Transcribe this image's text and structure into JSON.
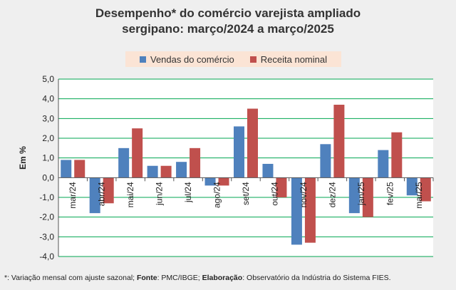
{
  "chart_data": {
    "type": "bar",
    "title_lines": [
      "Desempenho* do comércio varejista ampliado",
      "sergipano: março/2024 a março/2025"
    ],
    "ylabel": "Em %",
    "ylim": [
      -4.0,
      5.0
    ],
    "yticks": [
      5.0,
      4.0,
      3.0,
      2.0,
      1.0,
      0.0,
      -1.0,
      -2.0,
      -3.0,
      -4.0
    ],
    "ytick_labels": [
      "5,0",
      "4,0",
      "3,0",
      "2,0",
      "1,0",
      "0,0",
      "-1,0",
      "-2,0",
      "-3,0",
      "-4,0"
    ],
    "grid": true,
    "legend_position": "top-center",
    "categories": [
      "mar/24",
      "abr/24",
      "mai/24",
      "jun/24",
      "jul/24",
      "ago/24",
      "set/24",
      "out/24",
      "nov/24",
      "dez/24",
      "jan/25",
      "fev/25",
      "mar/25"
    ],
    "series": [
      {
        "name": "Vendas do comércio",
        "color": "#4f81bd",
        "values": [
          0.9,
          -1.8,
          1.5,
          0.6,
          0.8,
          -0.4,
          2.6,
          0.7,
          -3.4,
          1.7,
          -1.8,
          1.4,
          -0.9
        ]
      },
      {
        "name": "Receita nominal",
        "color": "#c0504d",
        "values": [
          0.9,
          -1.3,
          2.5,
          0.6,
          1.5,
          -0.4,
          3.5,
          -1.0,
          -3.3,
          3.7,
          -2.0,
          2.3,
          -1.2
        ]
      }
    ]
  },
  "footnote": {
    "part1": "*: Variação mensal com ajuste sazonal; ",
    "fonte_label": "Fonte",
    "part2": ": PMC/IBGE; ",
    "elab_label": "Elaboração",
    "part3": ": Observatório da Indústria do Sistema FIES."
  }
}
